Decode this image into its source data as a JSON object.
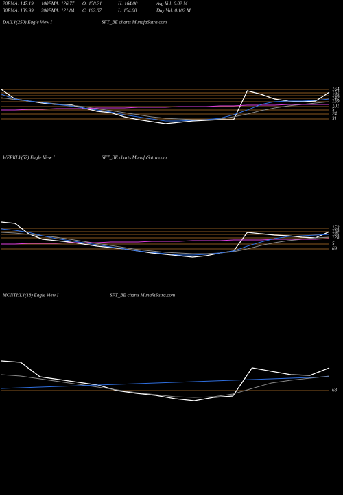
{
  "header": {
    "row1": [
      "20EMA: 147.19",
      "100EMA: 126.77",
      "O: 158.21",
      "H: 164.00",
      "Avg Vol: 0.02  M"
    ],
    "row2": [
      "30EMA: 139.99",
      "200EMA: 121.84",
      "C: 162.07",
      "L: 154.00",
      "Day Vol: 0.102  M"
    ]
  },
  "chart_data": [
    {
      "type": "line",
      "title": "DAILY(250) Eagle  View  I",
      "subtitle": "SFT_BE charts MunafaSutra.com",
      "ylim": [
        107,
        172
      ],
      "levels": [
        164,
        159,
        155,
        151,
        146,
        139,
        134,
        128,
        121
      ],
      "level_labels": [
        "164",
        "152",
        "148",
        "142",
        "139",
        "101",
        "5",
        "24",
        "31"
      ],
      "level_color": "#b8742a",
      "series": [
        {
          "color": "#ffffff",
          "values": [
            164,
            150,
            147,
            144,
            142,
            142,
            137,
            132,
            130,
            124,
            120,
            117,
            114,
            116,
            118,
            119,
            120,
            120,
            162,
            157,
            150,
            147,
            146,
            147,
            160
          ]
        },
        {
          "color": "#8a8a8a",
          "values": [
            152,
            149,
            147,
            145,
            143,
            141,
            139,
            136,
            133,
            130,
            127,
            124,
            122,
            121,
            120,
            120,
            121,
            124,
            128,
            133,
            137,
            140,
            142,
            144,
            146
          ]
        },
        {
          "color": "#e040e0",
          "values": [
            134,
            134,
            135,
            135,
            136,
            136,
            136,
            137,
            137,
            137,
            138,
            138,
            138,
            139,
            139,
            139,
            140,
            140,
            141,
            141,
            141,
            142,
            142,
            142,
            142
          ]
        },
        {
          "color": "#2f6fe0",
          "values": [
            157,
            150,
            147,
            145,
            142,
            140,
            137,
            134,
            131,
            127,
            124,
            121,
            118,
            118,
            119,
            120,
            122,
            127,
            134,
            142,
            146,
            147,
            147,
            148,
            150
          ]
        }
      ]
    },
    {
      "type": "line",
      "title": "WEEKLY(57) Eagle  View  I",
      "subtitle": "SFT_BE charts MunafaSutra.com",
      "ylim": [
        105,
        165
      ],
      "levels": [
        151,
        146,
        142,
        137,
        128,
        121
      ],
      "level_labels": [
        "153",
        "138",
        "135",
        "128",
        "5",
        "69"
      ],
      "level_color": "#b8742a",
      "series": [
        {
          "color": "#ffffff",
          "values": [
            160,
            158,
            143,
            135,
            133,
            131,
            128,
            125,
            123,
            121,
            118,
            115,
            113,
            111,
            109,
            111,
            115,
            118,
            145,
            143,
            141,
            140,
            138,
            137,
            146
          ]
        },
        {
          "color": "#8a8a8a",
          "values": [
            145,
            144,
            142,
            140,
            138,
            135,
            132,
            129,
            126,
            123,
            120,
            118,
            116,
            115,
            114,
            114,
            115,
            117,
            121,
            126,
            130,
            133,
            135,
            137,
            138
          ]
        },
        {
          "color": "#e040e0",
          "values": [
            128,
            128,
            129,
            129,
            129,
            130,
            130,
            130,
            131,
            131,
            131,
            132,
            132,
            132,
            133,
            133,
            133,
            134,
            134,
            134,
            135,
            135,
            135,
            135,
            136
          ]
        },
        {
          "color": "#2f6fe0",
          "values": [
            150,
            148,
            145,
            140,
            136,
            133,
            130,
            127,
            124,
            121,
            118,
            116,
            114,
            112,
            112,
            113,
            115,
            118,
            125,
            131,
            136,
            139,
            140,
            141,
            142
          ]
        }
      ]
    },
    {
      "type": "line",
      "title": "MONTHLY(18) Eagle  View  I",
      "subtitle": "SFT_BE charts MunafaSutra.com",
      "ylim": [
        115,
        190
      ],
      "levels": [
        137
      ],
      "level_labels": [
        "68"
      ],
      "level_color": "#b8742a",
      "series": [
        {
          "color": "#ffffff",
          "values": [
            180,
            178,
            157,
            153,
            149,
            145,
            137,
            133,
            130,
            125,
            122,
            127,
            129,
            170,
            165,
            160,
            159,
            170
          ]
        },
        {
          "color": "#8a8a8a",
          "values": [
            160,
            158,
            154,
            150,
            146,
            142,
            138,
            134,
            131,
            128,
            127,
            128,
            132,
            140,
            148,
            152,
            155,
            158
          ]
        },
        {
          "color": "#2f6fe0",
          "values": [
            140,
            141,
            142,
            143,
            144,
            145,
            146,
            147,
            148,
            149,
            150,
            151,
            152,
            153,
            154,
            155,
            156,
            157
          ]
        }
      ]
    }
  ]
}
